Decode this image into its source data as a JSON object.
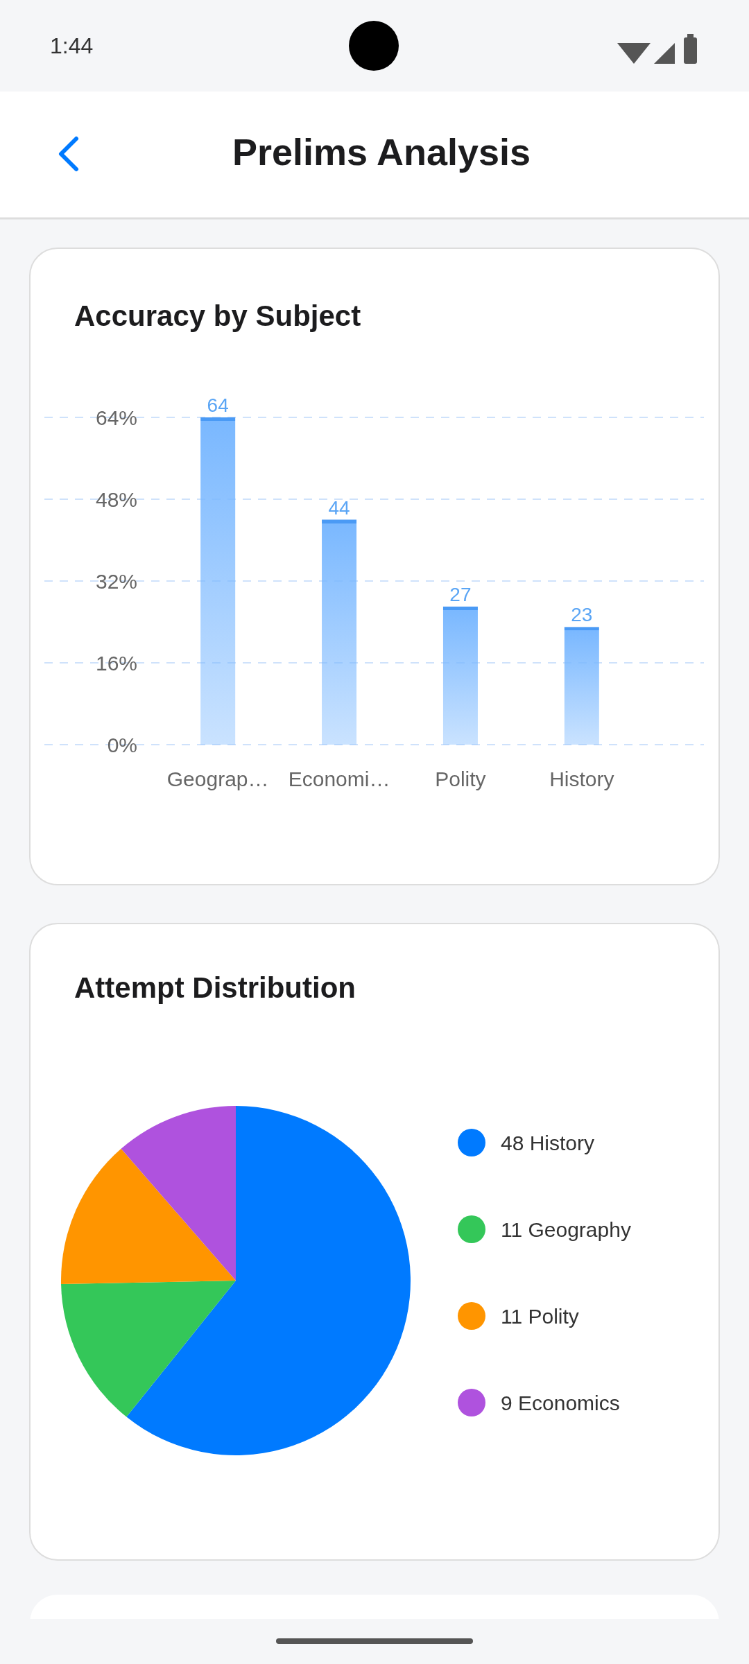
{
  "chart_data": [
    {
      "type": "bar",
      "title": "Accuracy by Subject",
      "annotations": [
        "1:44",
        "Prelims Analysis"
      ],
      "categories": [
        "Geograp…",
        "Economi…",
        "Polity",
        "History"
      ],
      "values": [
        64,
        44,
        27,
        23
      ],
      "color": "#7ab8ff",
      "ylim": [
        0,
        64
      ],
      "yticks": [
        {
          "value": 0,
          "label": "0%"
        },
        {
          "value": 16,
          "label": "16%"
        },
        {
          "value": 32,
          "label": "32%"
        },
        {
          "value": 48,
          "label": "48%"
        },
        {
          "value": 64,
          "label": "64%"
        }
      ],
      "grid": "y",
      "data_labels": true
    },
    {
      "type": "pie",
      "title": "Attempt Distribution",
      "categories": [
        "48 History",
        "11 Geography",
        "11 Polity",
        "9 Economics"
      ],
      "values": [
        48,
        11,
        11,
        9
      ],
      "colors": [
        "#007aff",
        "#34c759",
        "#ff9500",
        "#af52de"
      ],
      "legend": "right"
    }
  ]
}
